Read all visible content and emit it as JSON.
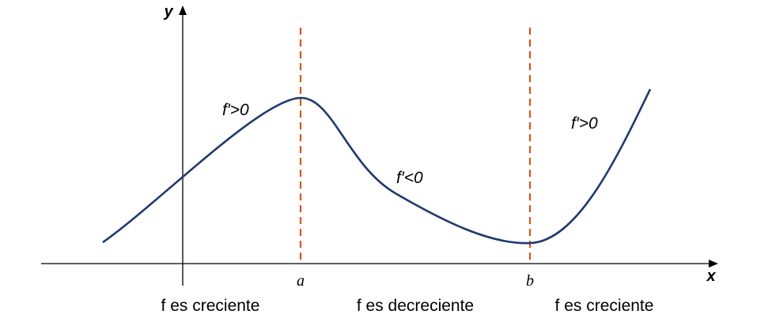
{
  "axes": {
    "y": "y",
    "x": "x"
  },
  "points": {
    "a": "a",
    "b": "b"
  },
  "slope_labels": [
    "f′>0",
    "f′<0",
    "f′>0"
  ],
  "interval_labels": [
    "f es creciente",
    "f es decreciente",
    "f es creciente"
  ]
}
